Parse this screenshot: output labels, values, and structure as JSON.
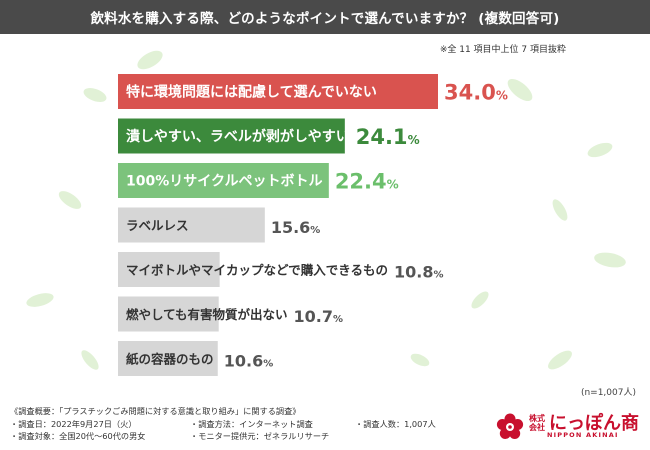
{
  "header": {
    "title": "飲料水を購入する際、どのようなポイントで選んでいますか？ (複数回答可)"
  },
  "note": "※全 11 項目中上位 7 項目抜粋",
  "sample": "(n=1,007人)",
  "chart_data": {
    "type": "bar",
    "orientation": "horizontal",
    "title": "",
    "categories": [
      "特に環境問題には配慮して選んでいない",
      "潰しやすい、ラベルが剥がしやすい",
      "100%リサイクルペットボトル",
      "ラベルレス",
      "マイボトルやマイカップなどで購入できるもの",
      "燃やしても有害物質が出ない",
      "紙の容器のもの"
    ],
    "values": [
      34.0,
      24.1,
      22.4,
      15.6,
      10.8,
      10.7,
      10.6
    ],
    "value_labels": [
      "34.0",
      "24.1",
      "22.4",
      "15.6",
      "10.8",
      "10.7",
      "10.6"
    ],
    "unit": "%",
    "bar_colors": [
      "#d9534f",
      "#3c8a3c",
      "#7cc37c",
      "#d6d6d6",
      "#d6d6d6",
      "#d6d6d6",
      "#d6d6d6"
    ],
    "value_colors": [
      "#d9534f",
      "#3c8a3c",
      "#6bbf6b",
      "#555555",
      "#555555",
      "#555555",
      "#555555"
    ],
    "label_colors": [
      "#ffffff",
      "#ffffff",
      "#ffffff",
      "#333333",
      "#333333",
      "#333333",
      "#333333"
    ],
    "xlim": [
      0,
      34.0
    ],
    "grid": false,
    "legend": "none"
  },
  "footer": {
    "title": "《調査概要：「プラスチックごみ問題に対する意識と取り組み」に関する調査》",
    "date": "・調査日：2022年9月27日（火）",
    "method": "・調査方法：インターネット調査",
    "count": "・調査人数：1,007人",
    "target": "・調査対象：全国20代〜60代の男女",
    "monitor": "・モニター提供元：ゼネラルリサーチ"
  },
  "logo": {
    "small": "株式会社",
    "main": "にっぽん商",
    "sub": "NIPPON AKINAI",
    "brand_color": "#c8102e"
  }
}
